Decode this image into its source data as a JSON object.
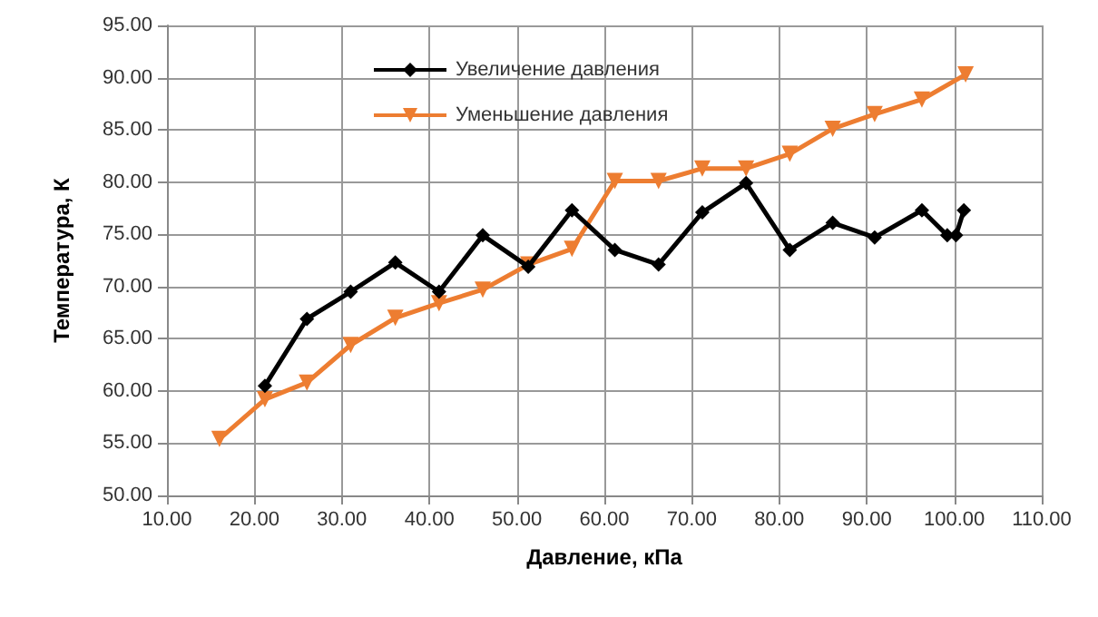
{
  "chart_data": {
    "type": "line",
    "xlabel": "Давление, кПа",
    "ylabel": "Температура, К",
    "xlim": [
      10,
      110
    ],
    "xticks": [
      {
        "value": 10,
        "label": "10.00"
      },
      {
        "value": 20,
        "label": "20.00"
      },
      {
        "value": 30,
        "label": "30.00"
      },
      {
        "value": 40,
        "label": "40.00"
      },
      {
        "value": 50,
        "label": "50.00"
      },
      {
        "value": 60,
        "label": "60.00"
      },
      {
        "value": 70,
        "label": "70.00"
      },
      {
        "value": 80,
        "label": "80.00"
      },
      {
        "value": 90,
        "label": "90.00"
      },
      {
        "value": 100,
        "label": "100.00"
      },
      {
        "value": 110,
        "label": "110.00"
      }
    ],
    "ylim": [
      50,
      95
    ],
    "yticks": [
      {
        "value": 50,
        "label": "50.00"
      },
      {
        "value": 55,
        "label": "55.00"
      },
      {
        "value": 60,
        "label": "60.00"
      },
      {
        "value": 65,
        "label": "65.00"
      },
      {
        "value": 70,
        "label": "70.00"
      },
      {
        "value": 75,
        "label": "75.00"
      },
      {
        "value": 80,
        "label": "80.00"
      },
      {
        "value": 85,
        "label": "85.00"
      },
      {
        "value": 90,
        "label": "90.00"
      },
      {
        "value": 95,
        "label": "95.00"
      }
    ],
    "grid": true,
    "legend": "top",
    "series": [
      {
        "name": "Увеличение давления",
        "color": "#000000",
        "marker": "diamond",
        "x": [
          21.2,
          26.0,
          31.0,
          36.1,
          41.1,
          46.1,
          51.3,
          56.3,
          61.2,
          66.2,
          71.2,
          76.2,
          81.2,
          86.1,
          90.9,
          96.3,
          99.2,
          100.2,
          101.1
        ],
        "values": [
          60.5,
          66.9,
          69.5,
          72.3,
          69.5,
          74.9,
          71.9,
          77.3,
          73.5,
          72.1,
          77.1,
          79.9,
          73.5,
          76.1,
          74.7,
          77.3,
          74.9,
          74.9,
          77.3
        ]
      },
      {
        "name": "Уменьшение давления",
        "color": "#ed7d31",
        "marker": "triangle",
        "x": [
          16.0,
          21.2,
          26.0,
          31.0,
          36.1,
          41.1,
          46.1,
          51.3,
          56.3,
          61.2,
          66.2,
          71.2,
          76.2,
          81.2,
          86.1,
          90.9,
          96.3,
          101.3
        ],
        "values": [
          55.4,
          59.2,
          60.8,
          64.4,
          67.0,
          68.4,
          69.7,
          72.1,
          73.6,
          80.1,
          80.1,
          81.3,
          81.3,
          82.7,
          85.1,
          86.5,
          87.9,
          90.3
        ]
      }
    ]
  }
}
